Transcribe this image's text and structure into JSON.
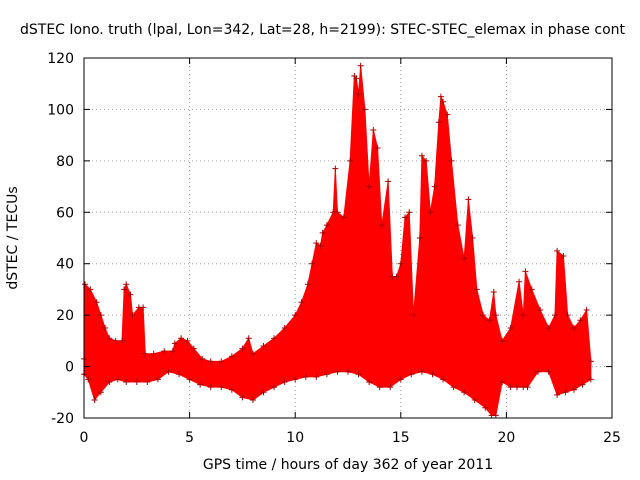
{
  "chart_data": {
    "type": "line",
    "title": "dSTEC Iono. truth (lpal, Lon=342, Lat=28, h=2199): STEC-STEC_elemax in phase cont",
    "xlabel": "GPS time / hours of day 362 of year 2011",
    "ylabel": "dSTEC  / TECUs",
    "xlim": [
      0,
      25
    ],
    "ylim": [
      -20,
      120
    ],
    "xticks": [
      0,
      5,
      10,
      15,
      20,
      25
    ],
    "yticks": [
      -20,
      0,
      20,
      40,
      60,
      80,
      100,
      120
    ],
    "grid": true,
    "series_color": "#ff0000",
    "marker": "plus",
    "series": [
      {
        "upper": [
          [
            0,
            3
          ],
          [
            0.05,
            32
          ],
          [
            0.3,
            30
          ],
          [
            0.6,
            25
          ],
          [
            0.8,
            20
          ],
          [
            1.0,
            15
          ],
          [
            1.2,
            11
          ],
          [
            1.5,
            10
          ],
          [
            1.8,
            10
          ],
          [
            1.9,
            30
          ],
          [
            2.0,
            32
          ],
          [
            2.2,
            28
          ],
          [
            2.3,
            20
          ],
          [
            2.6,
            23
          ],
          [
            2.8,
            23
          ],
          [
            2.9,
            5
          ],
          [
            3.3,
            5
          ],
          [
            3.8,
            6
          ],
          [
            4.2,
            6
          ],
          [
            4.3,
            9
          ],
          [
            4.6,
            11
          ],
          [
            4.9,
            10
          ],
          [
            5.2,
            7
          ],
          [
            5.6,
            3
          ],
          [
            6.0,
            2
          ],
          [
            6.5,
            2
          ],
          [
            7.0,
            4
          ],
          [
            7.5,
            7
          ],
          [
            7.8,
            11
          ],
          [
            8.0,
            5
          ],
          [
            8.5,
            8
          ],
          [
            9.0,
            11
          ],
          [
            9.5,
            15
          ],
          [
            10.0,
            20
          ],
          [
            10.3,
            25
          ],
          [
            10.6,
            32
          ],
          [
            10.8,
            40
          ],
          [
            11.0,
            48
          ],
          [
            11.2,
            47
          ],
          [
            11.3,
            52
          ],
          [
            11.5,
            55
          ],
          [
            11.8,
            60
          ],
          [
            11.9,
            77
          ],
          [
            12.0,
            60
          ],
          [
            12.3,
            58
          ],
          [
            12.6,
            80
          ],
          [
            12.8,
            113
          ],
          [
            12.9,
            112
          ],
          [
            13.0,
            106
          ],
          [
            13.1,
            117
          ],
          [
            13.3,
            100
          ],
          [
            13.5,
            70
          ],
          [
            13.7,
            92
          ],
          [
            13.9,
            85
          ],
          [
            14.1,
            55
          ],
          [
            14.4,
            72
          ],
          [
            14.6,
            35
          ],
          [
            14.8,
            35
          ],
          [
            15.0,
            40
          ],
          [
            15.2,
            58
          ],
          [
            15.4,
            60
          ],
          [
            15.6,
            20
          ],
          [
            15.9,
            50
          ],
          [
            16.0,
            82
          ],
          [
            16.2,
            80
          ],
          [
            16.4,
            60
          ],
          [
            16.6,
            70
          ],
          [
            16.8,
            95
          ],
          [
            16.9,
            105
          ],
          [
            17.0,
            103
          ],
          [
            17.2,
            98
          ],
          [
            17.4,
            80
          ],
          [
            17.7,
            55
          ],
          [
            18.0,
            42
          ],
          [
            18.2,
            65
          ],
          [
            18.4,
            50
          ],
          [
            18.6,
            30
          ],
          [
            18.9,
            20
          ],
          [
            19.2,
            18
          ],
          [
            19.4,
            29
          ],
          [
            19.5,
            20
          ],
          [
            19.8,
            10
          ],
          [
            20.2,
            15
          ],
          [
            20.6,
            33
          ],
          [
            20.8,
            20
          ],
          [
            20.9,
            37
          ],
          [
            21.2,
            30
          ],
          [
            21.6,
            22
          ],
          [
            22.0,
            15
          ],
          [
            22.3,
            20
          ],
          [
            22.4,
            45
          ],
          [
            22.7,
            43
          ],
          [
            22.9,
            20
          ],
          [
            23.2,
            15
          ],
          [
            23.5,
            18
          ],
          [
            23.8,
            22
          ],
          [
            24.0,
            2
          ]
        ],
        "lower": [
          [
            0,
            -3
          ],
          [
            0.2,
            -5
          ],
          [
            0.5,
            -13
          ],
          [
            0.8,
            -10
          ],
          [
            1.2,
            -6
          ],
          [
            1.6,
            -5
          ],
          [
            2.0,
            -6
          ],
          [
            2.5,
            -6
          ],
          [
            3.0,
            -6
          ],
          [
            3.5,
            -5
          ],
          [
            4.0,
            -2
          ],
          [
            4.5,
            -3
          ],
          [
            5.0,
            -5
          ],
          [
            5.5,
            -7
          ],
          [
            6.0,
            -8
          ],
          [
            6.5,
            -8
          ],
          [
            7.0,
            -9
          ],
          [
            7.5,
            -12
          ],
          [
            8.0,
            -13
          ],
          [
            8.5,
            -10
          ],
          [
            9.0,
            -8
          ],
          [
            9.5,
            -6
          ],
          [
            10.0,
            -5
          ],
          [
            10.5,
            -4
          ],
          [
            11.0,
            -4
          ],
          [
            11.5,
            -3
          ],
          [
            12.0,
            -2
          ],
          [
            12.5,
            -2
          ],
          [
            13.0,
            -3
          ],
          [
            13.5,
            -6
          ],
          [
            14.0,
            -8
          ],
          [
            14.5,
            -8
          ],
          [
            15.0,
            -5
          ],
          [
            15.5,
            -3
          ],
          [
            16.0,
            -2
          ],
          [
            16.5,
            -3
          ],
          [
            17.0,
            -5
          ],
          [
            17.5,
            -8
          ],
          [
            18.0,
            -10
          ],
          [
            18.5,
            -13
          ],
          [
            19.0,
            -16
          ],
          [
            19.3,
            -19
          ],
          [
            19.5,
            -19
          ],
          [
            19.8,
            -6
          ],
          [
            20.2,
            -8
          ],
          [
            20.5,
            -8
          ],
          [
            20.8,
            -8
          ],
          [
            21.0,
            -8
          ],
          [
            21.5,
            -2
          ],
          [
            22.0,
            -2
          ],
          [
            22.4,
            -11
          ],
          [
            22.8,
            -10
          ],
          [
            23.2,
            -9
          ],
          [
            23.6,
            -7
          ],
          [
            24.0,
            -5
          ]
        ]
      }
    ]
  }
}
